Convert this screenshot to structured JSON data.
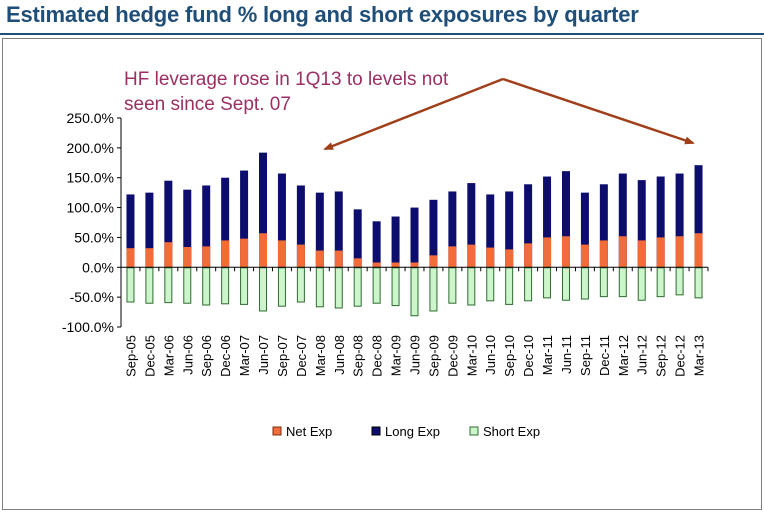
{
  "page_title": "Estimated hedge fund % long and short exposures by quarter",
  "chart_data": {
    "type": "bar",
    "title": "",
    "annotation": "HF leverage rose in 1Q13 to levels not seen since Sept. 07",
    "annotation_lines": [
      "HF leverage rose in 1Q13 to levels not",
      "seen since Sept. 07"
    ],
    "xlabel": "",
    "ylabel": "",
    "ylim": [
      -100,
      250
    ],
    "yticks": [
      250,
      200,
      150,
      100,
      50,
      0,
      -50,
      -100
    ],
    "ytick_labels": [
      "250.0%",
      "200.0%",
      "150.0%",
      "100.0%",
      "50.0%",
      "0.0%",
      "-50.0%",
      "-100.0%"
    ],
    "grid": false,
    "legend_position": "bottom",
    "categories": [
      "Sep-05",
      "Dec-05",
      "Mar-06",
      "Jun-06",
      "Sep-06",
      "Dec-06",
      "Mar-07",
      "Jun-07",
      "Sep-07",
      "Dec-07",
      "Mar-08",
      "Jun-08",
      "Sep-08",
      "Dec-08",
      "Mar-09",
      "Jun-09",
      "Sep-09",
      "Dec-09",
      "Mar-10",
      "Jun-10",
      "Sep-10",
      "Dec-10",
      "Mar-11",
      "Jun-11",
      "Sep-11",
      "Dec-11",
      "Mar-12",
      "Jun-12",
      "Sep-12",
      "Dec-12",
      "Mar-13"
    ],
    "series": [
      {
        "name": "Net Exp",
        "color": "#f26c3a",
        "values": [
          32,
          32,
          42,
          34,
          35,
          45,
          48,
          57,
          45,
          38,
          28,
          28,
          15,
          8,
          8,
          8,
          20,
          35,
          38,
          33,
          30,
          40,
          50,
          52,
          38,
          45,
          52,
          45,
          50,
          52,
          57
        ]
      },
      {
        "name": "Long Exp",
        "color": "#0d0d6e",
        "values": [
          122,
          125,
          145,
          130,
          137,
          150,
          162,
          192,
          157,
          137,
          125,
          127,
          97,
          77,
          85,
          100,
          113,
          127,
          141,
          122,
          127,
          139,
          152,
          161,
          125,
          139,
          157,
          146,
          152,
          157,
          171
        ]
      },
      {
        "name": "Short Exp",
        "color": "#ccf5cc",
        "values": [
          -59,
          -61,
          -60,
          -61,
          -64,
          -62,
          -63,
          -74,
          -66,
          -59,
          -67,
          -69,
          -66,
          -61,
          -65,
          -82,
          -74,
          -61,
          -64,
          -57,
          -63,
          -57,
          -52,
          -56,
          -54,
          -50,
          -50,
          -56,
          -50,
          -47,
          -52
        ]
      }
    ]
  },
  "colors": {
    "title": "#1f4e79",
    "annotation": "#9b3063",
    "arrow": "#a0401a",
    "net": "#f26c3a",
    "long": "#0d0d6e",
    "short": "#ccf5cc",
    "short_border": "#2f6b2f"
  }
}
